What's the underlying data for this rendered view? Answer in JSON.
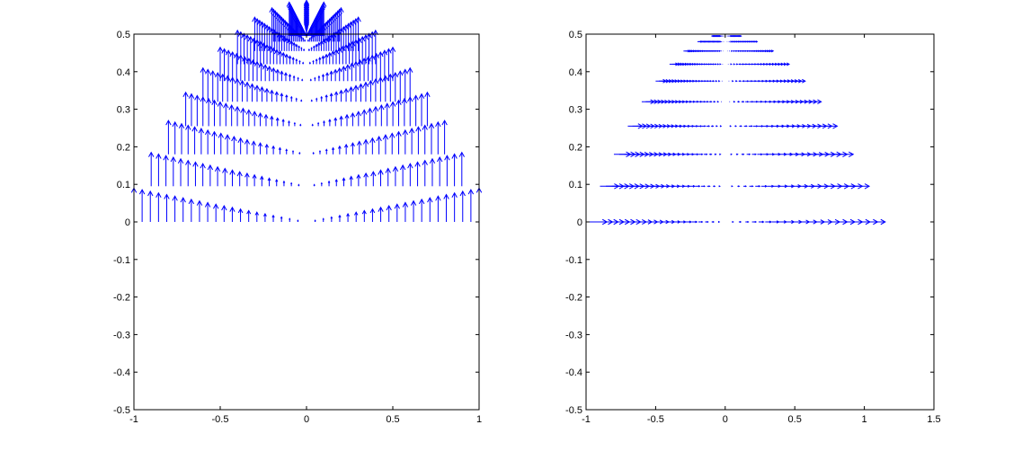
{
  "chart_data": [
    {
      "type": "quiver",
      "title": "",
      "xlabel": "",
      "ylabel": "",
      "xlim": [
        -1,
        1
      ],
      "ylim": [
        -0.5,
        0.5
      ],
      "grid": false,
      "color": "#0000ff",
      "xticks": [
        -1,
        -0.5,
        0,
        0.5,
        1
      ],
      "xtick_labels": [
        "-1",
        "-0.5",
        "0",
        "0.5",
        "1"
      ],
      "yticks": [
        -0.5,
        -0.4,
        -0.3,
        -0.2,
        -0.1,
        0,
        0.1,
        0.2,
        0.3,
        0.4,
        0.5
      ],
      "ytick_labels": [
        "-0.5",
        "-0.4",
        "-0.3",
        "-0.2",
        "-0.1",
        "0",
        "0.1",
        "0.2",
        "0.3",
        "0.4",
        "0.5"
      ],
      "field": {
        "description": "vertical arrows on a parabolic grid",
        "grid_rows": 21,
        "grid_cols": 21,
        "a_range": [
          0.05,
          1.0
        ],
        "s_range": [
          -1.0,
          1.0
        ],
        "points": "x = a*s, y = (1 - a^2)/2 + (a^2 - s^2)/2",
        "vectors": "u = 0, v = a"
      }
    },
    {
      "type": "quiver",
      "title": "",
      "xlabel": "",
      "ylabel": "",
      "xlim": [
        -1,
        1.5
      ],
      "ylim": [
        -0.5,
        0.5
      ],
      "grid": false,
      "color": "#0000ff",
      "xticks": [
        -1,
        -0.5,
        0,
        0.5,
        1,
        1.5
      ],
      "xtick_labels": [
        "-1",
        "-0.5",
        "0",
        "0.5",
        "1",
        "1.5"
      ],
      "yticks": [
        -0.5,
        -0.4,
        -0.3,
        -0.2,
        -0.1,
        0,
        0.1,
        0.2,
        0.3,
        0.4,
        0.5
      ],
      "ytick_labels": [
        "-0.5",
        "-0.4",
        "-0.3",
        "-0.2",
        "-0.1",
        "0",
        "0.1",
        "0.2",
        "0.3",
        "0.4",
        "0.5"
      ],
      "field": {
        "description": "horizontal arrows on a parabolic grid",
        "grid_rows": 21,
        "grid_cols": 21,
        "a_range": [
          0.05,
          1.0
        ],
        "s_range": [
          -1.0,
          1.0
        ],
        "points": "x = a*s, y = (1 - a^2)/2 + (a^2 - s^2)/2",
        "vectors": "u = a*|s|, v = 0"
      }
    }
  ]
}
